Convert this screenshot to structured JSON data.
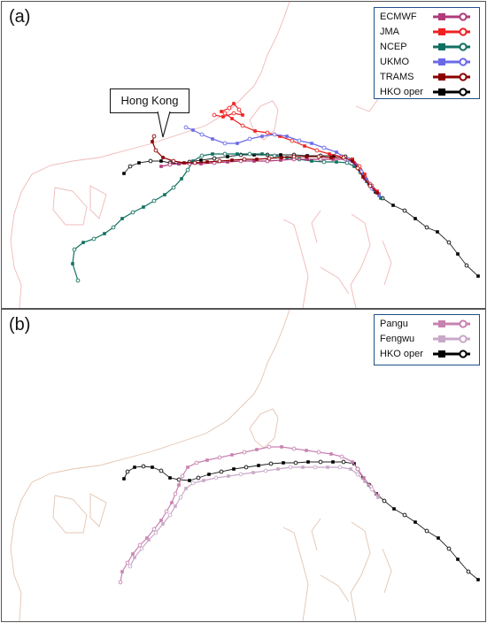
{
  "panel_a": {
    "label": "(a)",
    "callout": "Hong Kong",
    "legend": [
      {
        "name": "ECMWF",
        "color": "#b03a7a"
      },
      {
        "name": "JMA",
        "color": "#ee2222"
      },
      {
        "name": "NCEP",
        "color": "#107060"
      },
      {
        "name": "UKMO",
        "color": "#6a6ae8"
      },
      {
        "name": "TRAMS",
        "color": "#8b0000"
      },
      {
        "name": "HKO oper",
        "color": "#000000"
      }
    ]
  },
  "panel_b": {
    "label": "(b)",
    "legend": [
      {
        "name": "Pangu",
        "color": "#c882b0"
      },
      {
        "name": "Fengwu",
        "color": "#c8a8c8"
      },
      {
        "name": "HKO oper",
        "color": "#000000"
      }
    ]
  },
  "coast_color": "#f0b8b8",
  "coast_color_b": "#e4c4b0",
  "icons": [
    "filled-square-marker",
    "open-circle-marker"
  ]
}
